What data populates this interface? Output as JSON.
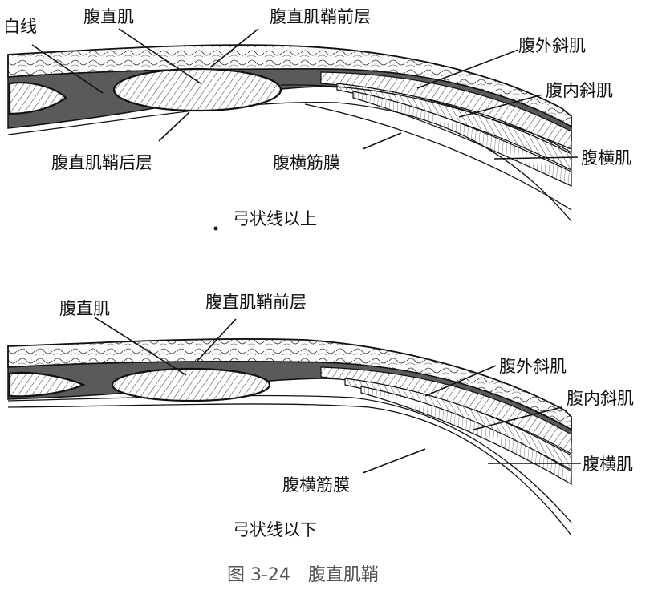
{
  "figure": {
    "caption": "图 3-24　腹直肌鞘",
    "upper": {
      "title": "弓状线以上",
      "labels": {
        "linea_alba": "白线",
        "rectus": "腹直肌",
        "anterior_layer": "腹直肌鞘前层",
        "external_oblique": "腹外斜肌",
        "internal_oblique": "腹内斜肌",
        "posterior_layer": "腹直肌鞘后层",
        "transversalis_fascia": "腹横筋膜",
        "transversus": "腹横肌"
      }
    },
    "lower": {
      "title": "弓状线以下",
      "labels": {
        "rectus": "腹直肌",
        "anterior_layer": "腹直肌鞘前层",
        "external_oblique": "腹外斜肌",
        "internal_oblique": "腹内斜肌",
        "transversus": "腹横肌",
        "transversalis_fascia": "腹横筋膜"
      }
    },
    "colors": {
      "ink": "#111111",
      "sheath": "#5a5a5a",
      "caption": "#555555"
    }
  }
}
